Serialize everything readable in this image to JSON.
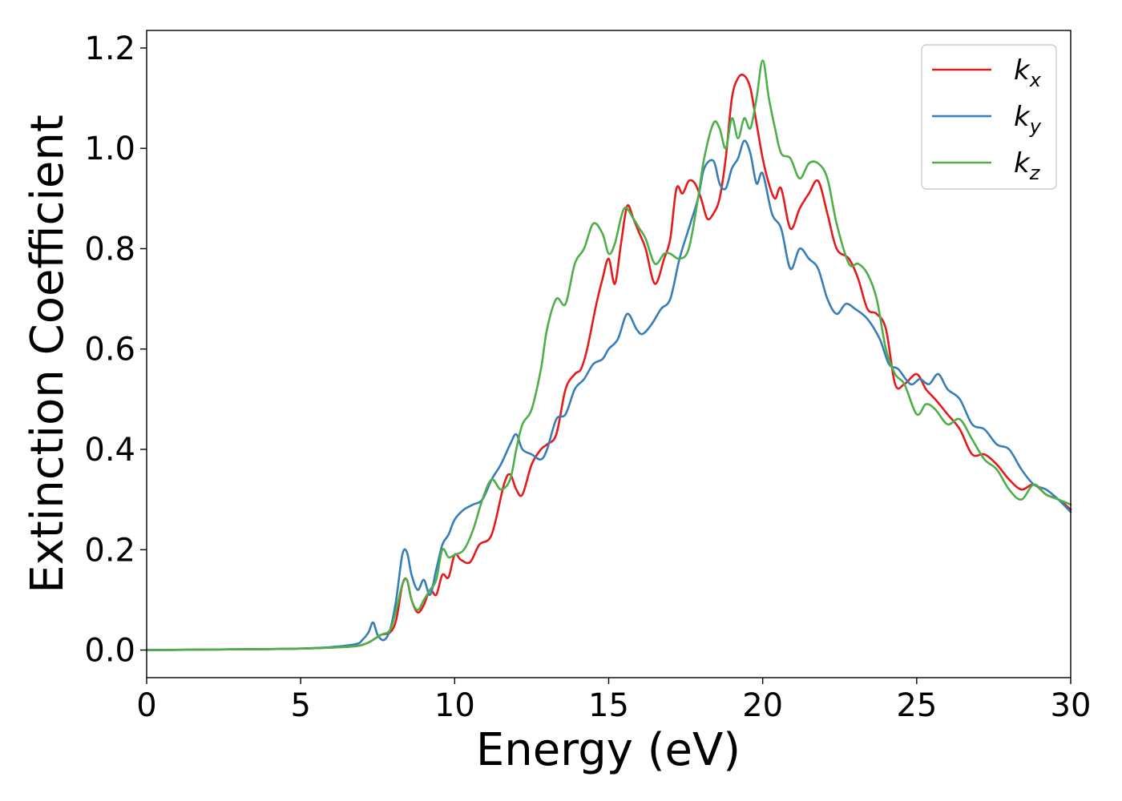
{
  "chart_data": {
    "type": "line",
    "title": "",
    "xlabel": "Energy (eV)",
    "ylabel": "Extinction Coefficient",
    "xlim": [
      0,
      30
    ],
    "ylim": [
      -0.055,
      1.235
    ],
    "xticks": [
      0,
      5,
      10,
      15,
      20,
      25,
      30
    ],
    "yticks": [
      0.0,
      0.2,
      0.4,
      0.6,
      0.8,
      1.0,
      1.2
    ],
    "xtick_labels": [
      "0",
      "5",
      "10",
      "15",
      "20",
      "25",
      "30"
    ],
    "ytick_labels": [
      "0.0",
      "0.2",
      "0.4",
      "0.6",
      "0.8",
      "1.0",
      "1.2"
    ],
    "grid": false,
    "legend_position": "top-right",
    "series": [
      {
        "name": "k_x",
        "label_main": "k",
        "label_sub": "x",
        "color": "#e41a1c",
        "x": [
          0,
          2,
          4,
          5,
          6,
          6.8,
          7.2,
          7.6,
          7.9,
          8.1,
          8.3,
          8.45,
          8.6,
          8.8,
          9.0,
          9.2,
          9.4,
          9.6,
          9.8,
          10.0,
          10.2,
          10.5,
          10.8,
          11.2,
          11.6,
          11.8,
          12.0,
          12.2,
          12.5,
          12.8,
          13.0,
          13.3,
          13.6,
          13.9,
          14.1,
          14.3,
          14.6,
          14.8,
          15.0,
          15.2,
          15.4,
          15.6,
          15.8,
          16.0,
          16.2,
          16.5,
          16.8,
          17.0,
          17.2,
          17.4,
          17.6,
          17.8,
          18.0,
          18.2,
          18.4,
          18.6,
          18.8,
          19.0,
          19.2,
          19.4,
          19.6,
          19.8,
          20.0,
          20.2,
          20.4,
          20.6,
          20.9,
          21.2,
          21.5,
          21.8,
          22.1,
          22.4,
          22.8,
          23.1,
          23.4,
          23.7,
          24.0,
          24.3,
          24.6,
          25.0,
          25.3,
          25.6,
          26.0,
          26.4,
          26.8,
          27.2,
          27.6,
          28.0,
          28.4,
          28.8,
          29.2,
          29.6,
          30.0
        ],
        "y": [
          0.0,
          0.001,
          0.002,
          0.003,
          0.005,
          0.008,
          0.015,
          0.03,
          0.035,
          0.06,
          0.13,
          0.14,
          0.1,
          0.075,
          0.09,
          0.12,
          0.11,
          0.15,
          0.145,
          0.19,
          0.18,
          0.175,
          0.21,
          0.23,
          0.33,
          0.35,
          0.32,
          0.31,
          0.37,
          0.4,
          0.41,
          0.43,
          0.52,
          0.55,
          0.56,
          0.6,
          0.69,
          0.74,
          0.78,
          0.73,
          0.81,
          0.885,
          0.86,
          0.83,
          0.8,
          0.73,
          0.78,
          0.82,
          0.92,
          0.91,
          0.935,
          0.93,
          0.9,
          0.86,
          0.87,
          0.9,
          0.98,
          1.1,
          1.14,
          1.145,
          1.12,
          1.05,
          0.98,
          0.93,
          0.9,
          0.92,
          0.84,
          0.88,
          0.91,
          0.935,
          0.87,
          0.8,
          0.78,
          0.74,
          0.68,
          0.67,
          0.64,
          0.53,
          0.53,
          0.55,
          0.52,
          0.5,
          0.47,
          0.44,
          0.39,
          0.39,
          0.37,
          0.34,
          0.32,
          0.33,
          0.31,
          0.3,
          0.28
        ]
      },
      {
        "name": "k_y",
        "label_main": "k",
        "label_sub": "y",
        "color": "#377eb8",
        "x": [
          0,
          2,
          4,
          5,
          6,
          6.8,
          7.0,
          7.2,
          7.35,
          7.5,
          7.7,
          7.9,
          8.1,
          8.3,
          8.45,
          8.6,
          8.8,
          9.0,
          9.2,
          9.4,
          9.6,
          9.8,
          10.0,
          10.3,
          10.6,
          10.9,
          11.2,
          11.5,
          11.8,
          12.0,
          12.2,
          12.5,
          12.8,
          13.0,
          13.3,
          13.6,
          13.9,
          14.2,
          14.5,
          14.8,
          15.0,
          15.3,
          15.6,
          15.9,
          16.1,
          16.4,
          16.7,
          17.0,
          17.3,
          17.6,
          17.9,
          18.1,
          18.4,
          18.6,
          18.8,
          19.0,
          19.2,
          19.4,
          19.6,
          19.8,
          20.0,
          20.3,
          20.6,
          20.9,
          21.2,
          21.5,
          21.8,
          22.1,
          22.4,
          22.7,
          23.0,
          23.4,
          23.8,
          24.1,
          24.4,
          24.8,
          25.1,
          25.4,
          25.7,
          26.0,
          26.4,
          26.8,
          27.2,
          27.6,
          28.0,
          28.4,
          28.8,
          29.2,
          29.6,
          30.0
        ],
        "y": [
          0.0,
          0.001,
          0.002,
          0.003,
          0.006,
          0.012,
          0.02,
          0.035,
          0.055,
          0.03,
          0.02,
          0.04,
          0.1,
          0.19,
          0.195,
          0.15,
          0.12,
          0.14,
          0.11,
          0.16,
          0.21,
          0.23,
          0.26,
          0.28,
          0.29,
          0.3,
          0.34,
          0.37,
          0.41,
          0.43,
          0.4,
          0.39,
          0.38,
          0.4,
          0.46,
          0.47,
          0.52,
          0.54,
          0.57,
          0.58,
          0.6,
          0.62,
          0.67,
          0.64,
          0.63,
          0.65,
          0.68,
          0.7,
          0.78,
          0.84,
          0.9,
          0.96,
          0.975,
          0.93,
          0.92,
          0.96,
          0.98,
          1.015,
          0.99,
          0.93,
          0.95,
          0.87,
          0.84,
          0.76,
          0.8,
          0.78,
          0.76,
          0.7,
          0.67,
          0.69,
          0.68,
          0.66,
          0.62,
          0.57,
          0.56,
          0.53,
          0.54,
          0.53,
          0.55,
          0.52,
          0.5,
          0.45,
          0.44,
          0.41,
          0.4,
          0.36,
          0.33,
          0.32,
          0.3,
          0.275
        ]
      },
      {
        "name": "k_z",
        "label_main": "k",
        "label_sub": "z",
        "color": "#4daf4a",
        "x": [
          0,
          2,
          4,
          5,
          6,
          6.8,
          7.2,
          7.6,
          7.9,
          8.1,
          8.3,
          8.45,
          8.6,
          8.8,
          9.0,
          9.2,
          9.4,
          9.6,
          9.8,
          10.0,
          10.3,
          10.6,
          10.9,
          11.2,
          11.5,
          11.8,
          12.0,
          12.2,
          12.5,
          12.8,
          13.0,
          13.3,
          13.6,
          13.9,
          14.2,
          14.5,
          14.8,
          15.0,
          15.2,
          15.5,
          15.8,
          16.0,
          16.2,
          16.5,
          16.8,
          17.0,
          17.3,
          17.6,
          17.9,
          18.1,
          18.4,
          18.6,
          18.8,
          19.0,
          19.2,
          19.4,
          19.6,
          19.8,
          20.0,
          20.2,
          20.4,
          20.6,
          20.9,
          21.2,
          21.5,
          21.8,
          22.1,
          22.4,
          22.8,
          23.1,
          23.4,
          23.7,
          24.0,
          24.3,
          24.6,
          25.0,
          25.3,
          25.6,
          26.0,
          26.4,
          26.8,
          27.2,
          27.6,
          28.0,
          28.4,
          28.8,
          29.2,
          29.6,
          30.0
        ],
        "y": [
          0.0,
          0.001,
          0.002,
          0.003,
          0.005,
          0.008,
          0.015,
          0.03,
          0.04,
          0.08,
          0.13,
          0.14,
          0.1,
          0.08,
          0.1,
          0.12,
          0.14,
          0.2,
          0.185,
          0.19,
          0.2,
          0.24,
          0.3,
          0.34,
          0.32,
          0.34,
          0.4,
          0.45,
          0.48,
          0.56,
          0.64,
          0.7,
          0.69,
          0.77,
          0.8,
          0.85,
          0.83,
          0.79,
          0.81,
          0.88,
          0.86,
          0.84,
          0.82,
          0.77,
          0.79,
          0.79,
          0.78,
          0.8,
          0.9,
          0.98,
          1.05,
          1.04,
          1.0,
          1.06,
          1.02,
          1.06,
          1.04,
          1.1,
          1.175,
          1.1,
          1.04,
          0.99,
          0.98,
          0.94,
          0.97,
          0.97,
          0.94,
          0.85,
          0.77,
          0.77,
          0.75,
          0.7,
          0.6,
          0.55,
          0.53,
          0.47,
          0.49,
          0.48,
          0.45,
          0.46,
          0.42,
          0.38,
          0.36,
          0.32,
          0.3,
          0.33,
          0.31,
          0.3,
          0.29
        ]
      }
    ]
  }
}
